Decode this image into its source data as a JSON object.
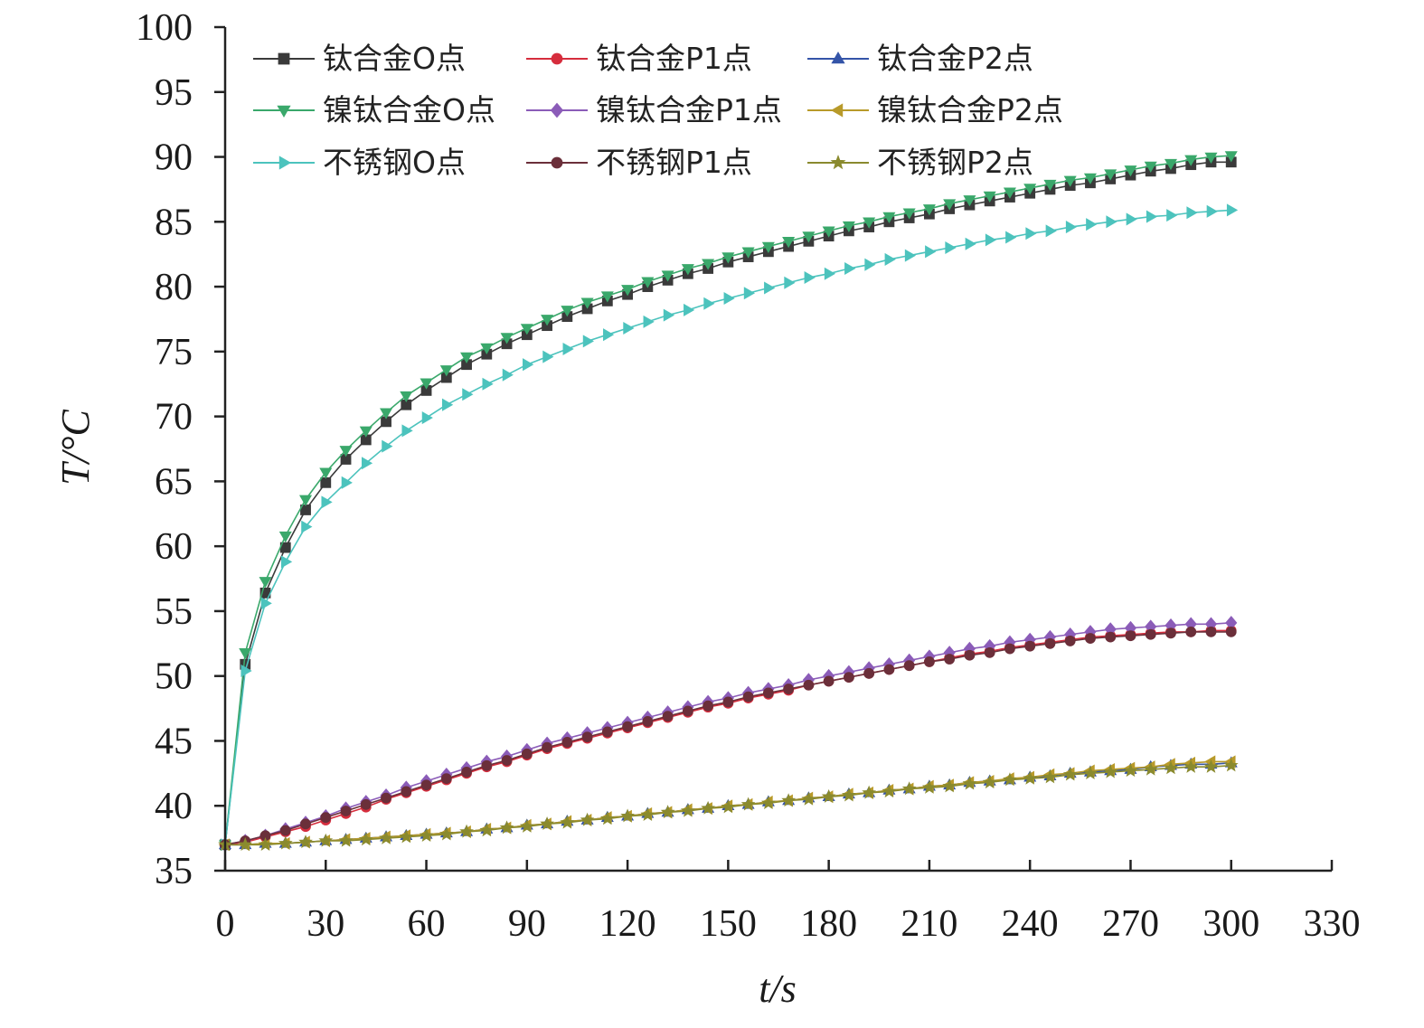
{
  "chart_data": {
    "type": "line",
    "title": "",
    "xlabel": "t/s",
    "ylabel": "T/°C",
    "xlim": [
      0,
      330
    ],
    "ylim": [
      35,
      100
    ],
    "xticks": [
      0,
      30,
      60,
      90,
      120,
      150,
      180,
      210,
      240,
      270,
      300,
      330
    ],
    "yticks": [
      35,
      40,
      45,
      50,
      55,
      60,
      65,
      70,
      75,
      80,
      85,
      90,
      95,
      100
    ],
    "grid": false,
    "legend_position": "top-left, 3 columns",
    "x": [
      0,
      6,
      12,
      18,
      24,
      30,
      36,
      42,
      48,
      54,
      60,
      66,
      72,
      78,
      84,
      90,
      96,
      102,
      108,
      114,
      120,
      126,
      132,
      138,
      144,
      150,
      156,
      162,
      168,
      174,
      180,
      186,
      192,
      198,
      204,
      210,
      216,
      222,
      228,
      234,
      240,
      246,
      252,
      258,
      264,
      270,
      276,
      282,
      288,
      294,
      300
    ],
    "series": [
      {
        "name": "钛合金O点",
        "color": "#3a3a3a",
        "marker": "square",
        "values": [
          37.0,
          50.9,
          56.4,
          59.9,
          62.8,
          64.9,
          66.7,
          68.2,
          69.6,
          70.9,
          72.0,
          73.0,
          74.0,
          74.8,
          75.6,
          76.3,
          77.0,
          77.7,
          78.3,
          78.9,
          79.4,
          80.0,
          80.5,
          81.0,
          81.4,
          81.9,
          82.3,
          82.7,
          83.1,
          83.5,
          83.9,
          84.3,
          84.6,
          85.0,
          85.3,
          85.6,
          86.0,
          86.3,
          86.6,
          86.9,
          87.2,
          87.5,
          87.8,
          88.0,
          88.3,
          88.6,
          88.9,
          89.1,
          89.4,
          89.6,
          89.6
        ]
      },
      {
        "name": "钛合金P1点",
        "color": "#d62d3d",
        "marker": "circle",
        "values": [
          37.0,
          37.2,
          37.6,
          38.0,
          38.4,
          38.9,
          39.4,
          39.9,
          40.5,
          41.0,
          41.5,
          42.0,
          42.5,
          43.0,
          43.4,
          43.9,
          44.4,
          44.8,
          45.2,
          45.6,
          46.0,
          46.4,
          46.8,
          47.2,
          47.6,
          47.9,
          48.3,
          48.6,
          48.9,
          49.3,
          49.6,
          49.9,
          50.2,
          50.5,
          50.8,
          51.1,
          51.4,
          51.7,
          51.9,
          52.2,
          52.4,
          52.6,
          52.8,
          53.0,
          53.1,
          53.2,
          53.3,
          53.4,
          53.4,
          53.5,
          53.5
        ]
      },
      {
        "name": "钛合金P2点",
        "color": "#3454a8",
        "marker": "triangle-up",
        "values": [
          37.0,
          37.0,
          37.1,
          37.1,
          37.2,
          37.3,
          37.4,
          37.5,
          37.6,
          37.7,
          37.8,
          37.9,
          38.0,
          38.2,
          38.3,
          38.5,
          38.6,
          38.8,
          38.9,
          39.1,
          39.2,
          39.4,
          39.5,
          39.7,
          39.8,
          40.0,
          40.1,
          40.3,
          40.4,
          40.6,
          40.7,
          40.9,
          41.0,
          41.2,
          41.3,
          41.5,
          41.6,
          41.8,
          41.9,
          42.0,
          42.2,
          42.3,
          42.5,
          42.6,
          42.7,
          42.8,
          43.0,
          43.1,
          43.2,
          43.2,
          43.3
        ]
      },
      {
        "name": "镍钛合金O点",
        "color": "#3aa86b",
        "marker": "triangle-down",
        "values": [
          37.0,
          51.8,
          57.3,
          60.8,
          63.6,
          65.7,
          67.4,
          68.9,
          70.3,
          71.6,
          72.6,
          73.6,
          74.6,
          75.3,
          76.1,
          76.8,
          77.5,
          78.2,
          78.8,
          79.3,
          79.8,
          80.4,
          80.9,
          81.4,
          81.8,
          82.3,
          82.7,
          83.1,
          83.5,
          83.9,
          84.3,
          84.7,
          85.0,
          85.4,
          85.7,
          86.0,
          86.4,
          86.7,
          87.0,
          87.3,
          87.6,
          87.9,
          88.2,
          88.4,
          88.7,
          89.0,
          89.3,
          89.5,
          89.8,
          90.0,
          90.1
        ]
      },
      {
        "name": "镍钛合金P1点",
        "color": "#8b5cb8",
        "marker": "diamond",
        "values": [
          37.0,
          37.3,
          37.7,
          38.2,
          38.7,
          39.2,
          39.8,
          40.3,
          40.8,
          41.4,
          41.9,
          42.4,
          42.9,
          43.4,
          43.8,
          44.3,
          44.8,
          45.2,
          45.6,
          46.0,
          46.4,
          46.8,
          47.2,
          47.6,
          48.0,
          48.3,
          48.7,
          49.0,
          49.3,
          49.7,
          50.0,
          50.3,
          50.6,
          50.9,
          51.2,
          51.5,
          51.8,
          52.1,
          52.3,
          52.6,
          52.8,
          53.0,
          53.2,
          53.4,
          53.6,
          53.7,
          53.8,
          53.9,
          54.0,
          54.0,
          54.1
        ]
      },
      {
        "name": "镍钛合金P2点",
        "color": "#b89a2a",
        "marker": "triangle-left",
        "values": [
          37.0,
          37.0,
          37.1,
          37.1,
          37.2,
          37.3,
          37.4,
          37.5,
          37.6,
          37.7,
          37.8,
          37.9,
          38.0,
          38.2,
          38.3,
          38.5,
          38.6,
          38.8,
          38.9,
          39.1,
          39.2,
          39.4,
          39.5,
          39.7,
          39.8,
          40.0,
          40.1,
          40.3,
          40.4,
          40.6,
          40.7,
          40.9,
          41.0,
          41.2,
          41.3,
          41.5,
          41.6,
          41.8,
          41.9,
          42.1,
          42.2,
          42.4,
          42.5,
          42.7,
          42.8,
          42.9,
          43.0,
          43.2,
          43.3,
          43.4,
          43.4
        ]
      },
      {
        "name": "不锈钢O点",
        "color": "#4cc3bd",
        "marker": "triangle-right",
        "values": [
          37.0,
          50.4,
          55.6,
          58.8,
          61.5,
          63.4,
          64.9,
          66.4,
          67.7,
          68.9,
          69.9,
          70.9,
          71.7,
          72.5,
          73.2,
          74.0,
          74.6,
          75.2,
          75.8,
          76.3,
          76.8,
          77.3,
          77.8,
          78.2,
          78.7,
          79.1,
          79.5,
          79.9,
          80.3,
          80.7,
          81.0,
          81.4,
          81.7,
          82.1,
          82.4,
          82.7,
          83.0,
          83.3,
          83.6,
          83.8,
          84.1,
          84.3,
          84.6,
          84.8,
          85.0,
          85.2,
          85.4,
          85.5,
          85.7,
          85.8,
          85.9
        ]
      },
      {
        "name": "不锈钢P1点",
        "color": "#6b2f3a",
        "marker": "circle",
        "values": [
          37.0,
          37.3,
          37.7,
          38.1,
          38.6,
          39.1,
          39.6,
          40.1,
          40.6,
          41.1,
          41.6,
          42.1,
          42.6,
          43.1,
          43.5,
          44.0,
          44.5,
          44.9,
          45.3,
          45.7,
          46.1,
          46.5,
          46.9,
          47.3,
          47.7,
          48.0,
          48.4,
          48.7,
          49.0,
          49.3,
          49.6,
          49.9,
          50.2,
          50.5,
          50.8,
          51.1,
          51.3,
          51.6,
          51.8,
          52.1,
          52.3,
          52.5,
          52.7,
          52.9,
          53.0,
          53.1,
          53.2,
          53.3,
          53.4,
          53.4,
          53.4
        ]
      },
      {
        "name": "不锈钢P2点",
        "color": "#8a8a2e",
        "marker": "star",
        "values": [
          37.0,
          37.0,
          37.0,
          37.1,
          37.2,
          37.3,
          37.3,
          37.4,
          37.5,
          37.6,
          37.7,
          37.8,
          38.0,
          38.1,
          38.3,
          38.4,
          38.6,
          38.7,
          38.9,
          39.0,
          39.2,
          39.3,
          39.5,
          39.6,
          39.8,
          39.9,
          40.1,
          40.2,
          40.4,
          40.5,
          40.7,
          40.8,
          41.0,
          41.1,
          41.3,
          41.4,
          41.5,
          41.7,
          41.8,
          42.0,
          42.1,
          42.2,
          42.4,
          42.5,
          42.6,
          42.7,
          42.8,
          42.9,
          43.0,
          43.0,
          43.1
        ]
      }
    ]
  }
}
